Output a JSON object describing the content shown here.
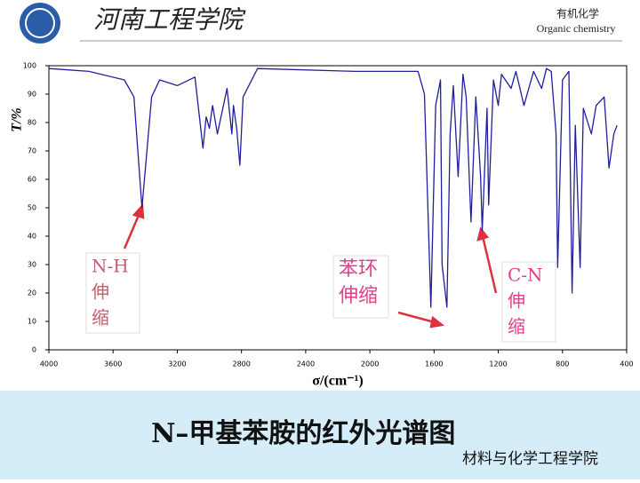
{
  "header": {
    "logo_text": "河南工程学院",
    "course": "有机化学",
    "course_en": "Organic chemistry"
  },
  "footer": "材料与化学工程学院",
  "chart_data": {
    "type": "line",
    "title": "N–甲基苯胺的红外光谱图",
    "x_label": "σ/(cm⁻¹)",
    "y_label": "T/%",
    "color": "#1f1f9e",
    "grid": false,
    "xlim": [
      4000,
      400
    ],
    "xticks": [
      4000,
      3600,
      3200,
      2800,
      2400,
      2000,
      1600,
      1200,
      800,
      400
    ],
    "ylim": [
      0,
      100
    ],
    "yticks": [
      0,
      10,
      20,
      30,
      40,
      50,
      60,
      70,
      80,
      90,
      100
    ],
    "x": [
      4000,
      3750,
      3530,
      3470,
      3420,
      3360,
      3310,
      3200,
      3090,
      3040,
      3020,
      3000,
      2980,
      2950,
      2920,
      2890,
      2860,
      2850,
      2830,
      2810,
      2790,
      2700,
      2090,
      1700,
      1670,
      1660,
      1620,
      1590,
      1560,
      1550,
      1520,
      1500,
      1480,
      1450,
      1420,
      1400,
      1370,
      1340,
      1310,
      1300,
      1270,
      1260,
      1230,
      1200,
      1180,
      1120,
      1090,
      1040,
      980,
      930,
      900,
      870,
      840,
      830,
      800,
      760,
      740,
      720,
      690,
      670,
      620,
      590,
      540,
      510,
      480,
      460
    ],
    "values": [
      99,
      98,
      95,
      89,
      50,
      89,
      95,
      93,
      96,
      71,
      82,
      78,
      86,
      76,
      84,
      92,
      76,
      86,
      78,
      65,
      89,
      99,
      98,
      98,
      92,
      90,
      15,
      86,
      95,
      30,
      15,
      76,
      93,
      61,
      97,
      89,
      45,
      89,
      61,
      42,
      85,
      51,
      95,
      86,
      97,
      92,
      98,
      86,
      98,
      92,
      99,
      98,
      76,
      29,
      95,
      98,
      20,
      79,
      29,
      85,
      76,
      86,
      89,
      64,
      76,
      79
    ],
    "annotations": [
      {
        "lines": [
          "N-H",
          "伸",
          "缩"
        ]
      },
      {
        "lines": [
          "苯环",
          "伸缩"
        ]
      },
      {
        "lines": [
          "C-N",
          "伸",
          "缩"
        ]
      }
    ]
  }
}
